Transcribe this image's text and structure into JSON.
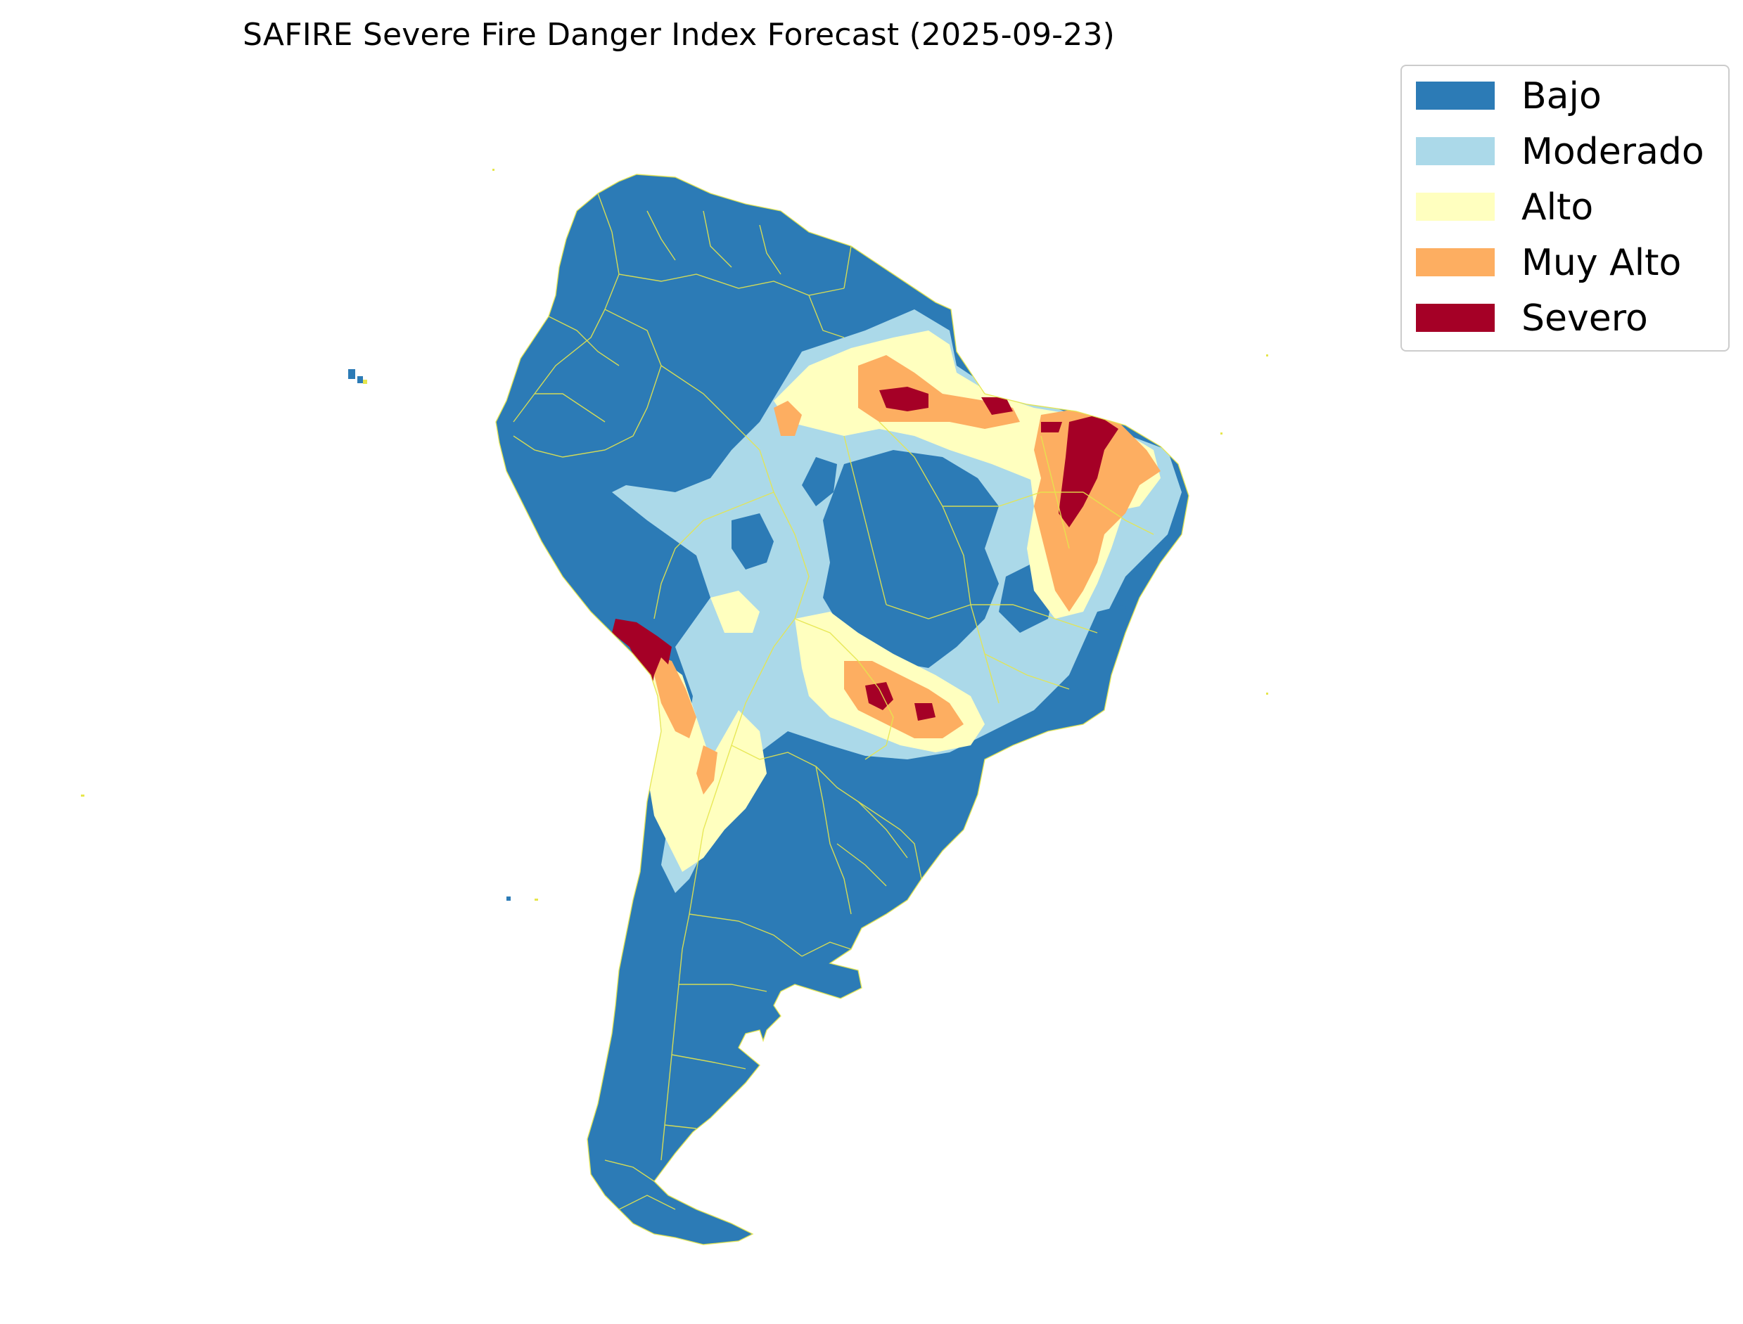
{
  "title": "SAFIRE Severe Fire Danger Index Forecast (2025-09-23)",
  "legend": {
    "items": [
      {
        "label": "Bajo",
        "color": "#2c7bb6"
      },
      {
        "label": "Moderado",
        "color": "#abd9e9"
      },
      {
        "label": "Alto",
        "color": "#ffffbf"
      },
      {
        "label": "Muy Alto",
        "color": "#fdae61"
      },
      {
        "label": "Severo",
        "color": "#a50026"
      }
    ]
  },
  "map": {
    "region": "South America",
    "boundary_color": "#e6e64d",
    "categories": [
      "Bajo",
      "Moderado",
      "Alto",
      "Muy Alto",
      "Severo"
    ]
  }
}
